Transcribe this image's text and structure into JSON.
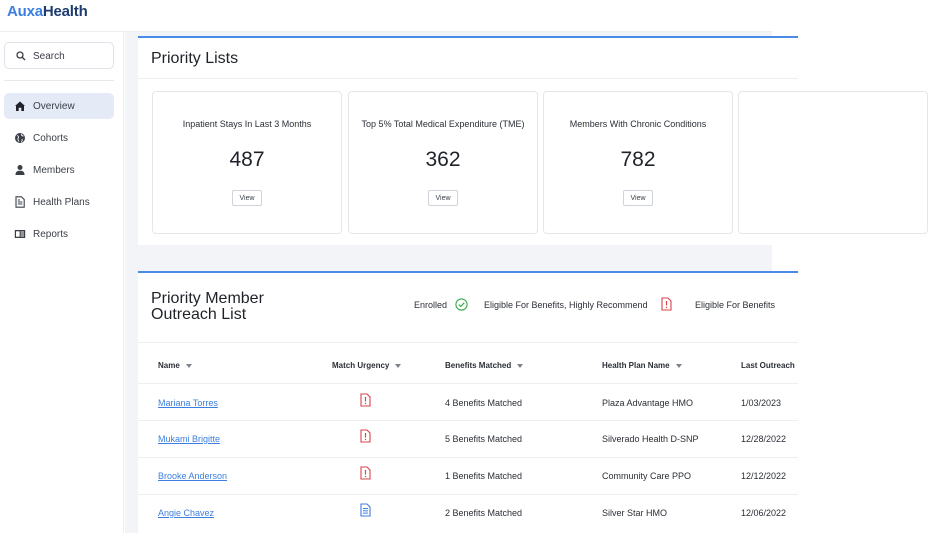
{
  "brand": {
    "part1": "Auxa",
    "part2": "Health"
  },
  "sidebar": {
    "search_placeholder": "Search",
    "items": [
      {
        "label": "Overview",
        "icon": "home-icon",
        "active": true
      },
      {
        "label": "Cohorts",
        "icon": "globe-icon",
        "active": false
      },
      {
        "label": "Members",
        "icon": "person-icon",
        "active": false
      },
      {
        "label": "Health Plans",
        "icon": "document-icon",
        "active": false
      },
      {
        "label": "Reports",
        "icon": "report-icon",
        "active": false
      }
    ]
  },
  "priority_lists": {
    "title": "Priority Lists",
    "cards": [
      {
        "label": "Inpatient Stays In Last 3 Months",
        "value": "487",
        "button": "View"
      },
      {
        "label": "Top 5% Total Medical Expenditure (TME)",
        "value": "362",
        "button": "View"
      },
      {
        "label": "Members With Chronic Conditions",
        "value": "782",
        "button": "View"
      }
    ]
  },
  "outreach": {
    "title": "Priority Member Outreach List",
    "legend": {
      "enrolled": "Enrolled",
      "highly_recommend": "Eligible For Benefits, Highly Recommend",
      "eligible": "Eligible For Benefits"
    },
    "columns": {
      "name": "Name",
      "urgency": "Match Urgency",
      "benefits": "Benefits Matched",
      "plan": "Health Plan Name",
      "last": "Last Outreach"
    },
    "rows": [
      {
        "name": "Mariana Torres",
        "urgency": "high",
        "benefits": "4 Benefits Matched",
        "plan": "Plaza Advantage HMO",
        "last": "1/03/2023"
      },
      {
        "name": "Mukami Brigitte",
        "urgency": "high",
        "benefits": "5 Benefits Matched",
        "plan": "Silverado Health D-SNP",
        "last": "12/28/2022"
      },
      {
        "name": "Brooke Anderson",
        "urgency": "high",
        "benefits": "1 Benefits Matched",
        "plan": "Community Care  PPO",
        "last": "12/12/2022"
      },
      {
        "name": "Angie Chavez",
        "urgency": "eligible",
        "benefits": "2 Benefits Matched",
        "plan": "Silver Star HMO",
        "last": "12/06/2022"
      }
    ]
  },
  "colors": {
    "accent": "#4a8be6",
    "link": "#3c7fe0",
    "alert": "#d9434b",
    "enrolled": "#3aa84a",
    "info": "#3c7fe0",
    "sidebar_active": "#e4eaf6"
  }
}
